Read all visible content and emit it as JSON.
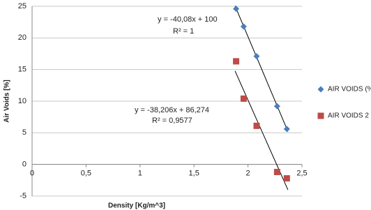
{
  "chart_data": {
    "type": "scatter",
    "x_label": "Density [Kg/m^3]",
    "y_label": "Air Voids [%]",
    "xlim": [
      0,
      2.5
    ],
    "xticks": [
      0,
      {
        "value": 0.5,
        "label": "0,5"
      },
      1,
      {
        "value": 1.5,
        "label": "1,5"
      },
      2,
      {
        "value": 2.5,
        "label": "2,5"
      }
    ],
    "ylim": [
      -5,
      25
    ],
    "yticks": [
      -5,
      0,
      5,
      10,
      15,
      20,
      25
    ],
    "grid": true,
    "trendline": true,
    "legend": "right",
    "annotations": [
      "y = -40,08x + 100",
      "R² = 1",
      "y = -38,206x + 86,274",
      "R² = 0,9577"
    ],
    "series": [
      {
        "name": "AIR VOIDS (%",
        "color": "#4a7ebb",
        "marker": "diamond",
        "x": [
          1.89,
          1.96,
          2.08,
          2.27,
          2.36
        ],
        "values": [
          24.6,
          21.8,
          17.1,
          9.2,
          5.6
        ]
      },
      {
        "name": "AIR VOIDS 2 (",
        "color": "#be4b48",
        "marker": "square",
        "x": [
          1.89,
          1.96,
          2.08,
          2.27,
          2.36
        ],
        "values": [
          16.3,
          10.4,
          6.1,
          -1.2,
          -2.2
        ]
      }
    ]
  }
}
